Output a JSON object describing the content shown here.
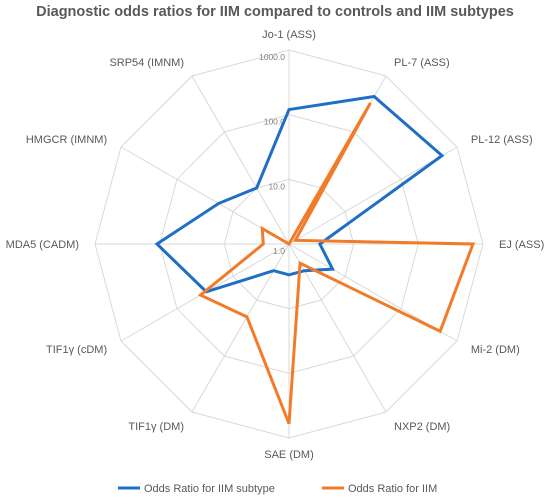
{
  "chart_data": {
    "type": "radar",
    "title": "Diagnostic odds ratios for IIM compared to controls and IIM subtypes",
    "scale": "log10",
    "rlim": [
      1.0,
      1000.0
    ],
    "ticks": [
      "1.0",
      "10.0",
      "100.0",
      "1000.0"
    ],
    "tick_values": [
      1,
      10,
      100,
      1000
    ],
    "categories": [
      "Jo-1 (ASS)",
      "PL-7 (ASS)",
      "PL-12 (ASS)",
      "EJ (ASS)",
      "Mi-2 (DM)",
      "NXP2 (DM)",
      "SAE (DM)",
      "TIF1γ  (DM)",
      "TIF1γ  (cDM)",
      "MDA5 (CADM)",
      "HMGCR (IMNM)",
      "SRP54 (IMNM)"
    ],
    "series": [
      {
        "name": "Odds Ratio for IIM subtype",
        "color": "#1f6fc6",
        "values": [
          120,
          430,
          540,
          3,
          6,
          3,
          3,
          3,
          30,
          110,
          18,
          10
        ]
      },
      {
        "name": "Odds Ratio for IIM",
        "color": "#f27b2a",
        "values": [
          1,
          330,
          1.3,
          700,
          500,
          2.2,
          600,
          20,
          38,
          2.5,
          3,
          1
        ]
      }
    ],
    "grid": true,
    "legend": "bottom"
  }
}
